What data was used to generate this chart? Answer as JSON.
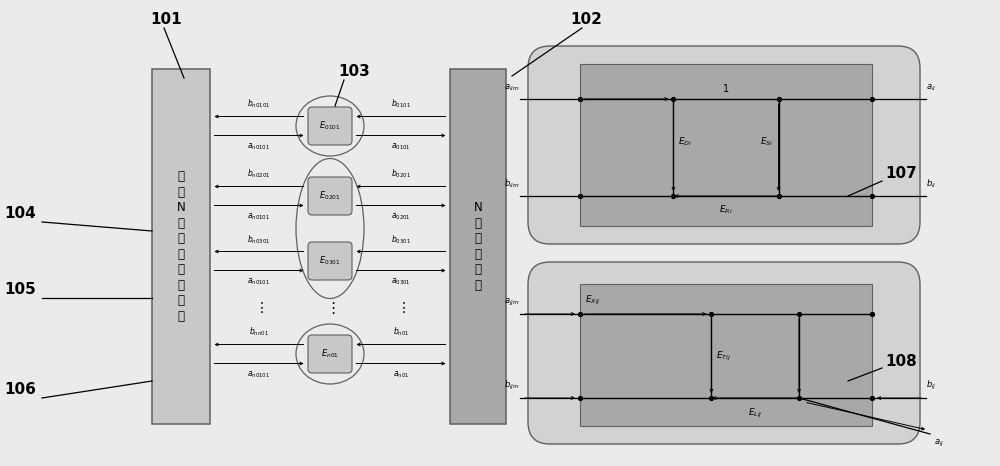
{
  "fig_bg": "#ebebeb",
  "gray_light": "#c8c8c8",
  "gray_med": "#a8a8a8",
  "gray_dark": "#606060",
  "outer_box_fill": "#d2d2d2",
  "vna_text": "理\n想\nN\n端\n口\n网\n络\n分\n析\n仪",
  "dut_text": "N\n端\n口\n被\n测\n件",
  "label_101": "101",
  "label_102": "102",
  "label_103": "103",
  "label_104": "104",
  "label_105": "105",
  "label_106": "106",
  "label_107": "107",
  "label_108": "108"
}
